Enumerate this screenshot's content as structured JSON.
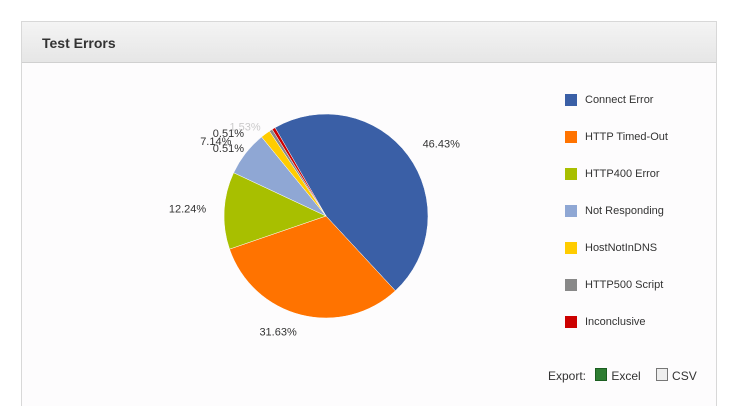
{
  "header": {
    "title": "Test Errors"
  },
  "chart_data": {
    "type": "pie",
    "categories": [
      "Connect Error",
      "HTTP Timed-Out",
      "HTTP400  Error",
      "Not Responding",
      "HostNotInDNS",
      "HTTP500 Script",
      "Inconclusive"
    ],
    "values": [
      46.43,
      31.63,
      12.24,
      7.14,
      1.53,
      0.51,
      0.51
    ],
    "value_labels": [
      "46.43%",
      "31.63%",
      "12.24%",
      "7.14%",
      "1.53%",
      "0.51%",
      "0.51%"
    ],
    "colors": [
      "#3a5fa6",
      "#ff7300",
      "#a8bf00",
      "#8fa7d4",
      "#ffcc00",
      "#888888",
      "#cc0000"
    ],
    "legend": "right"
  },
  "export": {
    "label": "Export:",
    "excel": "Excel",
    "csv": "CSV"
  }
}
